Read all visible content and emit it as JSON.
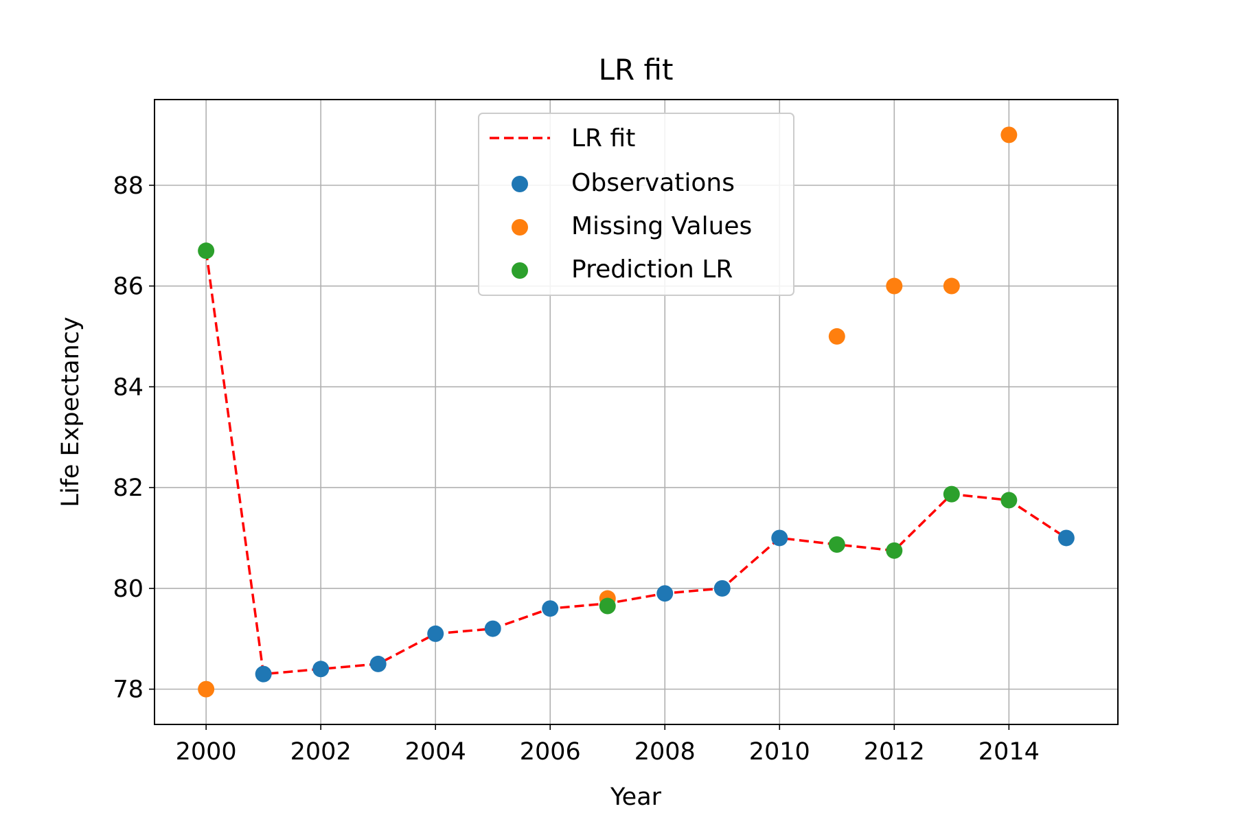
{
  "chart_data": {
    "type": "scatter",
    "title": "LR fit",
    "xlabel": "Year",
    "ylabel": "Life Expectancy",
    "xlim": [
      1999.1,
      2015.9
    ],
    "ylim": [
      77.3,
      89.7
    ],
    "xticks": [
      2000,
      2002,
      2004,
      2006,
      2008,
      2010,
      2012,
      2014
    ],
    "yticks": [
      78,
      80,
      82,
      84,
      86,
      88
    ],
    "grid": true,
    "legend_position": "upper center",
    "fit_line": {
      "name": "LR fit",
      "color": "#ff0000",
      "style": "dashed",
      "x": [
        2000,
        2001,
        2002,
        2003,
        2004,
        2005,
        2006,
        2007,
        2008,
        2009,
        2010,
        2011,
        2012,
        2013,
        2014,
        2015
      ],
      "y": [
        86.7,
        78.3,
        78.4,
        78.5,
        79.1,
        79.2,
        79.6,
        79.7,
        79.9,
        80.0,
        81.0,
        80.87,
        80.75,
        81.87,
        81.75,
        81.0
      ]
    },
    "series": [
      {
        "name": "Observations",
        "color": "#1f77b4",
        "x": [
          2001,
          2002,
          2003,
          2004,
          2005,
          2006,
          2008,
          2009,
          2010,
          2015
        ],
        "y": [
          78.3,
          78.4,
          78.5,
          79.1,
          79.2,
          79.6,
          79.9,
          80.0,
          81.0,
          81.0
        ]
      },
      {
        "name": "Missing Values",
        "color": "#ff7f0e",
        "x": [
          2000,
          2007,
          2011,
          2012,
          2013,
          2014
        ],
        "y": [
          78.0,
          79.8,
          85.0,
          86.0,
          86.0,
          89.0
        ]
      },
      {
        "name": "Prediction LR",
        "color": "#2ca02c",
        "x": [
          2000,
          2007,
          2011,
          2012,
          2013,
          2014
        ],
        "y": [
          86.7,
          79.65,
          80.87,
          80.75,
          81.87,
          81.75
        ]
      }
    ]
  }
}
